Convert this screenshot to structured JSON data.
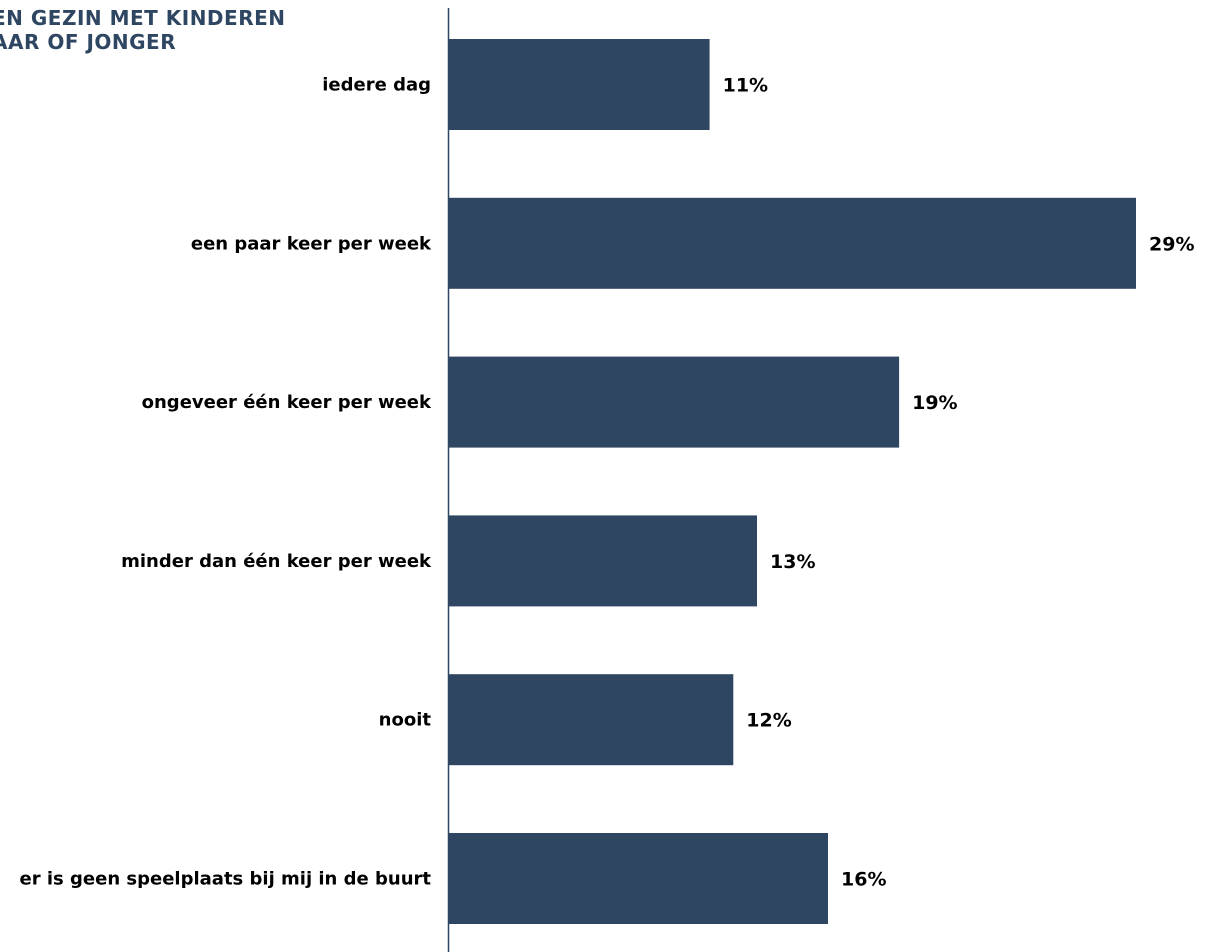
{
  "chart_data": {
    "type": "bar",
    "orientation": "horizontal",
    "title_lines": [
      "EN GEZIN MET KINDEREN",
      "AAR OF JONGER"
    ],
    "categories": [
      "iedere dag",
      "een paar keer per week",
      "ongeveer één keer per week",
      "minder dan één keer per week",
      "nooit",
      "er is geen speelplaats bij mij in de buurt"
    ],
    "values": [
      11,
      29,
      19,
      13,
      12,
      16
    ],
    "value_labels": [
      "11%",
      "29%",
      "19%",
      "13%",
      "12%",
      "16%"
    ],
    "xlim": [
      0,
      30
    ],
    "grid": false,
    "bar_color": "#2e4661",
    "title_color": "#2e4661"
  }
}
